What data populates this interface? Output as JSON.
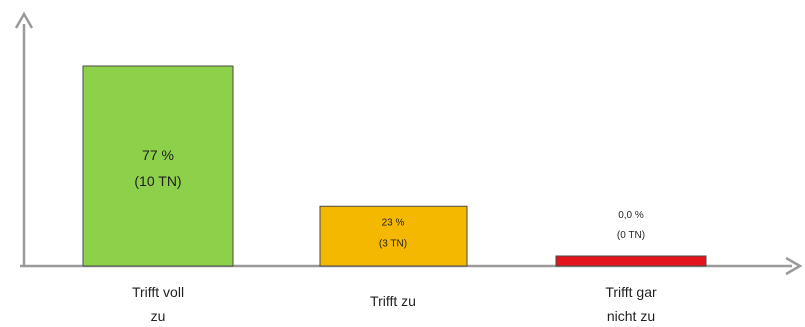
{
  "chart_data": {
    "type": "bar",
    "categories": [
      [
        "Trifft voll",
        "zu"
      ],
      [
        "Trifft zu"
      ],
      [
        "Trifft gar",
        "nicht zu"
      ]
    ],
    "values": [
      77,
      23,
      0
    ],
    "value_unit": "%",
    "counts_label": [
      "(10 TN)",
      "(3 TN)",
      "(0 TN)"
    ],
    "value_labels": [
      "77 %",
      "23 %",
      "0,0 %"
    ],
    "bar_colors": [
      "#8dd04a",
      "#f5b800",
      "#e3141b"
    ],
    "bar_border_color": "#4a4a4a",
    "axis_color": "#9a9a9a",
    "ylim": [
      0,
      100
    ],
    "grid": false,
    "title": "",
    "xlabel": "",
    "ylabel": ""
  }
}
